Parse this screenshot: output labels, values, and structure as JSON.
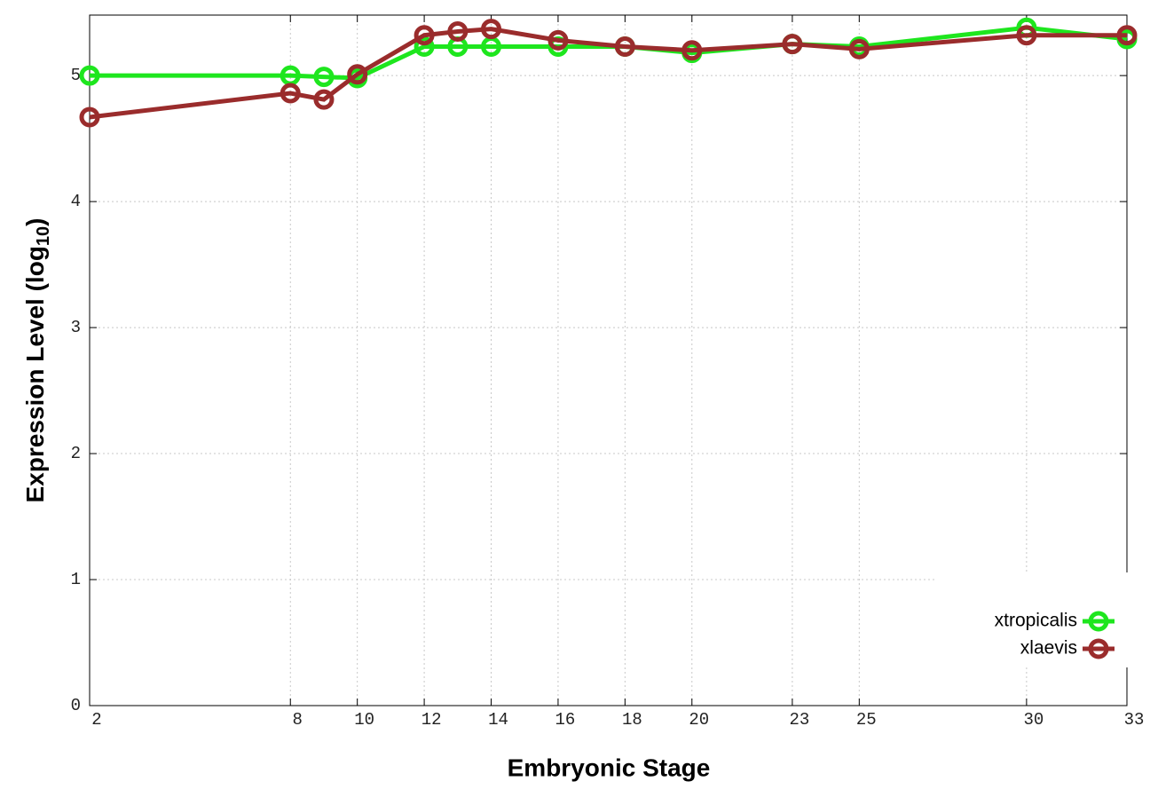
{
  "chart_data": {
    "type": "line",
    "xlabel": "Embryonic Stage",
    "ylabel": "Expression Level (log",
    "ylabel_sub": "10",
    "ylabel_end": ")",
    "x": [
      2,
      8,
      9,
      10,
      12,
      13,
      14,
      16,
      18,
      20,
      23,
      25,
      30,
      33
    ],
    "series": [
      {
        "name": "xtropicalis",
        "color": "#1ee61e",
        "values": [
          5.0,
          5.0,
          4.99,
          4.98,
          5.23,
          5.23,
          5.23,
          5.23,
          5.23,
          5.18,
          5.25,
          5.23,
          5.38,
          5.29
        ]
      },
      {
        "name": "xlaevis",
        "color": "#9a2c2c",
        "values": [
          4.67,
          4.86,
          4.81,
          5.01,
          5.32,
          5.35,
          5.37,
          5.28,
          5.23,
          5.2,
          5.25,
          5.21,
          5.32,
          5.32
        ]
      }
    ],
    "xlim": [
      2,
      33
    ],
    "xticks": [
      2,
      8,
      10,
      12,
      14,
      16,
      18,
      20,
      23,
      25,
      30,
      33
    ],
    "ylim": [
      0,
      5.48
    ],
    "yticks": [
      0,
      1,
      2,
      3,
      4,
      5
    ],
    "grid": true,
    "legend": "lower right"
  }
}
